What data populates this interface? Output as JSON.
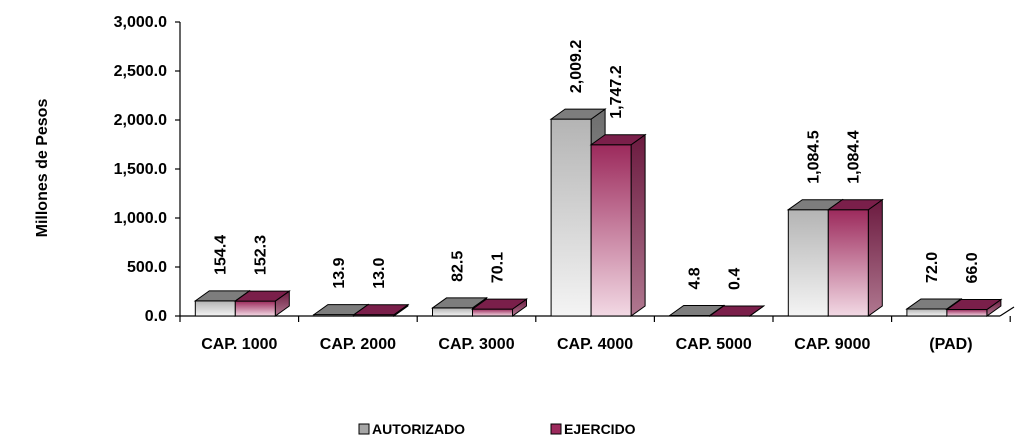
{
  "chart_data": {
    "type": "bar",
    "ylabel": "Millones de Pesos",
    "ylim": [
      0,
      3000
    ],
    "yticks": [
      "0.0",
      "500.0",
      "1,000.0",
      "1,500.0",
      "2,000.0",
      "2,500.0",
      "3,000.0"
    ],
    "categories": [
      "CAP. 1000",
      "CAP. 2000",
      "CAP. 3000",
      "CAP. 4000",
      "CAP. 5000",
      "CAP. 9000",
      "(PAD)"
    ],
    "series": [
      {
        "name": "AUTORIZADO",
        "values": [
          154.4,
          13.9,
          82.5,
          2009.2,
          4.8,
          1084.5,
          72.0
        ],
        "labels": [
          "154.4",
          "13.9",
          "82.5",
          "2,009.2",
          "4.8",
          "1,084.5",
          "72.0"
        ],
        "color": "#a6a6a6"
      },
      {
        "name": "EJERCIDO",
        "values": [
          152.3,
          13.0,
          70.1,
          1747.2,
          0.4,
          1084.4,
          66.0
        ],
        "labels": [
          "152.3",
          "13.0",
          "70.1",
          "1,747.2",
          "0.4",
          "1,084.4",
          "66.0"
        ],
        "color": "#9c2a5c"
      }
    ],
    "legend_position": "bottom-center",
    "grid": false,
    "style": "3d-bar"
  }
}
